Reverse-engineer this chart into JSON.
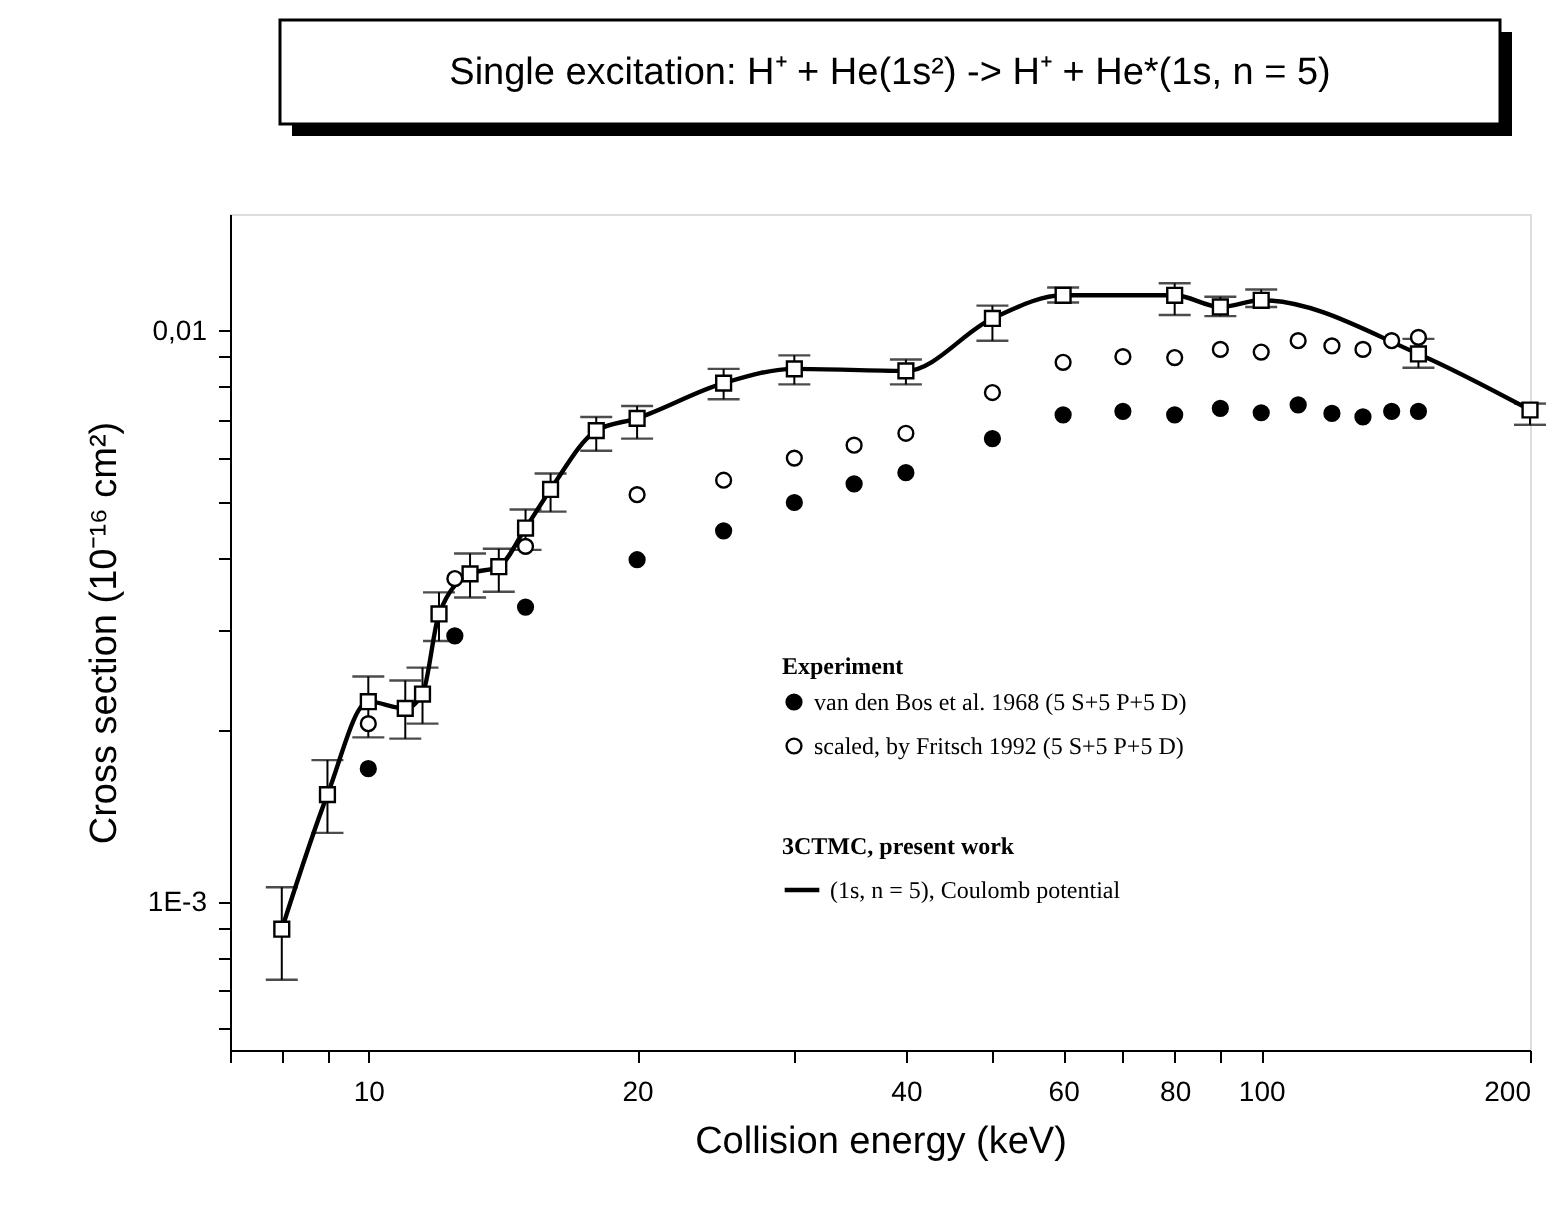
{
  "chart_data": {
    "type": "scatter",
    "title": "Single excitation: H⁺ + He(1s²) -> H⁺ + He*(1s, n = 5)",
    "xlabel": "Collision energy (keV)",
    "ylabel": "Cross section (10⁻¹⁶ cm²)",
    "log": "xy",
    "xlim": [
      7,
      200
    ],
    "ylim": [
      0.00055,
      0.016
    ],
    "xticks": [
      {
        "value": 7,
        "label": null
      },
      {
        "value": 8,
        "label": null
      },
      {
        "value": 9,
        "label": null
      },
      10,
      20,
      {
        "value": 30,
        "label": null
      },
      40,
      {
        "value": 50,
        "label": null
      },
      60,
      {
        "value": 70,
        "label": null
      },
      80,
      {
        "value": 90,
        "label": null
      },
      100,
      200
    ],
    "yticks": [
      {
        "value": 0.0006,
        "label": null
      },
      {
        "value": 0.0007,
        "label": null
      },
      {
        "value": 0.0008,
        "label": null
      },
      {
        "value": 0.0009,
        "label": null
      },
      {
        "value": 0.001,
        "label": "1E-3"
      },
      {
        "value": 0.002,
        "label": null
      },
      {
        "value": 0.003,
        "label": null
      },
      {
        "value": 0.004,
        "label": null
      },
      {
        "value": 0.005,
        "label": null
      },
      {
        "value": 0.006,
        "label": null
      },
      {
        "value": 0.007,
        "label": null
      },
      {
        "value": 0.008,
        "label": null
      },
      {
        "value": 0.009,
        "label": null
      },
      {
        "value": 0.01,
        "label": "0,01"
      }
    ],
    "grid": false,
    "legend": "bottom right",
    "annotations": [
      "Experiment",
      "3CTMC, present work"
    ],
    "series": [
      {
        "name": "van den Bos et al. 1968 (5 S+5 P+5 D)",
        "marker": "circle",
        "color": "#000000",
        "x": [
          10,
          12.5,
          15,
          20,
          25,
          30,
          35,
          40,
          50,
          60,
          70,
          80,
          90,
          100,
          110,
          120,
          130,
          140,
          150
        ],
        "values": [
          0.00171,
          0.00292,
          0.00328,
          0.00397,
          0.00446,
          0.005,
          0.00539,
          0.00564,
          0.00647,
          0.00712,
          0.00722,
          0.00712,
          0.00731,
          0.00718,
          0.00741,
          0.00716,
          0.00706,
          0.00722,
          0.00722
        ]
      },
      {
        "name": "scaled, by Fritsch 1992 (5 S+5 P+5 D)",
        "marker": "circle",
        "color": "#ffffff",
        "x": [
          10,
          12.5,
          15,
          20,
          25,
          30,
          35,
          40,
          50,
          60,
          70,
          80,
          90,
          100,
          110,
          120,
          130,
          140,
          150
        ],
        "values": [
          0.00205,
          0.00368,
          0.00419,
          0.00516,
          0.00547,
          0.00598,
          0.0063,
          0.00661,
          0.00779,
          0.0088,
          0.009,
          0.00897,
          0.00927,
          0.00917,
          0.0096,
          0.0094,
          0.00927,
          0.0096,
          0.00973
        ]
      },
      {
        "name": "(1s, n = 5), Coulomb potential",
        "type": "line",
        "marker": "square",
        "line_style": "solid",
        "color": "#000000",
        "x": [
          8,
          9,
          10,
          11,
          11.5,
          12,
          13,
          14,
          15,
          16,
          18,
          20,
          25,
          30,
          40,
          50,
          60,
          80,
          90,
          100,
          150,
          200
        ],
        "values": [
          0.000895,
          0.00154,
          0.00224,
          0.00218,
          0.00231,
          0.00319,
          0.00375,
          0.00386,
          0.00451,
          0.00527,
          0.00668,
          0.00702,
          0.00809,
          0.00857,
          0.0085,
          0.0105,
          0.01153,
          0.01153,
          0.011,
          0.0113,
          0.0091,
          0.00726
        ],
        "errors": [
          [
            0.00073,
            0.00106
          ],
          [
            0.00132,
            0.00177
          ],
          [
            0.00194,
            0.00248
          ],
          [
            0.00193,
            0.00244
          ],
          [
            0.00205,
            0.00257
          ],
          [
            0.00286,
            0.00348
          ],
          [
            0.00341,
            0.00407
          ],
          [
            0.00349,
            0.00415
          ],
          [
            0.00413,
            0.00486
          ],
          [
            0.00482,
            0.00562
          ],
          [
            0.00616,
            0.00706
          ],
          [
            0.00647,
            0.00738
          ],
          [
            0.00758,
            0.00857
          ],
          [
            0.00805,
            0.00905
          ],
          [
            0.00805,
            0.0089
          ],
          [
            0.0096,
            0.01106
          ],
          [
            0.0112,
            0.0119
          ],
          [
            0.01065,
            0.0121
          ],
          [
            0.0106,
            0.01146
          ],
          [
            0.011,
            0.0118
          ],
          [
            0.00861,
            0.00967
          ],
          [
            0.00684,
            0.00745
          ]
        ]
      }
    ]
  }
}
